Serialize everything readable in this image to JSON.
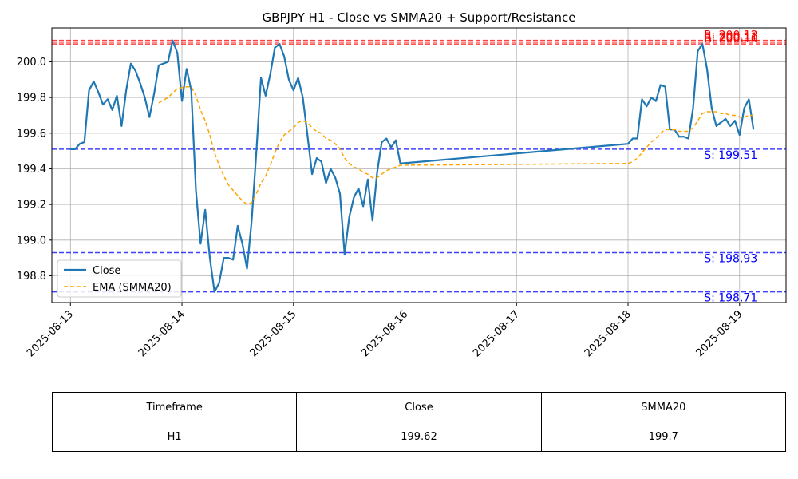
{
  "chart_data": {
    "type": "line",
    "title": "GBPJPY H1 - Close vs SMMA20 + Support/Resistance",
    "xlabel": "",
    "ylabel": "",
    "ylim": [
      198.65,
      200.19
    ],
    "xlim": [
      "2025-08-12T20:00",
      "2025-08-19T10:00"
    ],
    "x_ticks": [
      "2025-08-13",
      "2025-08-14",
      "2025-08-15",
      "2025-08-16",
      "2025-08-17",
      "2025-08-18",
      "2025-08-19"
    ],
    "y_ticks": [
      "198.8",
      "199.0",
      "199.2",
      "199.4",
      "199.6",
      "199.8",
      "200.0"
    ],
    "grid": true,
    "legend_position": "lower-left",
    "series": [
      {
        "name": "Close",
        "color": "#1f77b4",
        "style": "solid",
        "points": [
          [
            "2025-08-13T00:00",
            199.51
          ],
          [
            "2025-08-13T01:00",
            199.51
          ],
          [
            "2025-08-13T02:00",
            199.54
          ],
          [
            "2025-08-13T03:00",
            199.55
          ],
          [
            "2025-08-13T04:00",
            199.84
          ],
          [
            "2025-08-13T05:00",
            199.89
          ],
          [
            "2025-08-13T06:00",
            199.83
          ],
          [
            "2025-08-13T07:00",
            199.76
          ],
          [
            "2025-08-13T08:00",
            199.79
          ],
          [
            "2025-08-13T09:00",
            199.73
          ],
          [
            "2025-08-13T10:00",
            199.81
          ],
          [
            "2025-08-13T11:00",
            199.64
          ],
          [
            "2025-08-13T12:00",
            199.84
          ],
          [
            "2025-08-13T13:00",
            199.99
          ],
          [
            "2025-08-13T14:00",
            199.95
          ],
          [
            "2025-08-13T15:00",
            199.88
          ],
          [
            "2025-08-13T16:00",
            199.8
          ],
          [
            "2025-08-13T17:00",
            199.69
          ],
          [
            "2025-08-13T18:00",
            199.82
          ],
          [
            "2025-08-13T19:00",
            199.98
          ],
          [
            "2025-08-13T21:00",
            200.0
          ],
          [
            "2025-08-13T22:00",
            200.12
          ],
          [
            "2025-08-13T23:00",
            200.05
          ],
          [
            "2025-08-14T00:00",
            199.78
          ],
          [
            "2025-08-14T01:00",
            199.96
          ],
          [
            "2025-08-14T02:00",
            199.84
          ],
          [
            "2025-08-14T03:00",
            199.28
          ],
          [
            "2025-08-14T04:00",
            198.98
          ],
          [
            "2025-08-14T05:00",
            199.17
          ],
          [
            "2025-08-14T06:00",
            198.9
          ],
          [
            "2025-08-14T07:00",
            198.71
          ],
          [
            "2025-08-14T08:00",
            198.76
          ],
          [
            "2025-08-14T09:00",
            198.9
          ],
          [
            "2025-08-14T10:00",
            198.9
          ],
          [
            "2025-08-14T11:00",
            198.89
          ],
          [
            "2025-08-14T12:00",
            199.08
          ],
          [
            "2025-08-14T13:00",
            198.98
          ],
          [
            "2025-08-14T14:00",
            198.84
          ],
          [
            "2025-08-14T15:00",
            199.11
          ],
          [
            "2025-08-14T16:00",
            199.49
          ],
          [
            "2025-08-14T17:00",
            199.91
          ],
          [
            "2025-08-14T18:00",
            199.81
          ],
          [
            "2025-08-14T19:00",
            199.93
          ],
          [
            "2025-08-14T20:00",
            200.08
          ],
          [
            "2025-08-14T21:00",
            200.1
          ],
          [
            "2025-08-14T22:00",
            200.03
          ],
          [
            "2025-08-14T23:00",
            199.9
          ],
          [
            "2025-08-15T00:00",
            199.84
          ],
          [
            "2025-08-15T01:00",
            199.91
          ],
          [
            "2025-08-15T02:00",
            199.8
          ],
          [
            "2025-08-15T03:00",
            199.59
          ],
          [
            "2025-08-15T04:00",
            199.37
          ],
          [
            "2025-08-15T05:00",
            199.46
          ],
          [
            "2025-08-15T06:00",
            199.44
          ],
          [
            "2025-08-15T07:00",
            199.32
          ],
          [
            "2025-08-15T08:00",
            199.4
          ],
          [
            "2025-08-15T09:00",
            199.35
          ],
          [
            "2025-08-15T10:00",
            199.26
          ],
          [
            "2025-08-15T11:00",
            198.92
          ],
          [
            "2025-08-15T12:00",
            199.13
          ],
          [
            "2025-08-15T13:00",
            199.24
          ],
          [
            "2025-08-15T14:00",
            199.29
          ],
          [
            "2025-08-15T15:00",
            199.19
          ],
          [
            "2025-08-15T16:00",
            199.34
          ],
          [
            "2025-08-15T17:00",
            199.11
          ],
          [
            "2025-08-15T18:00",
            199.38
          ],
          [
            "2025-08-15T19:00",
            199.55
          ],
          [
            "2025-08-15T20:00",
            199.57
          ],
          [
            "2025-08-15T21:00",
            199.52
          ],
          [
            "2025-08-15T22:00",
            199.56
          ],
          [
            "2025-08-15T23:00",
            199.43
          ],
          [
            "2025-08-18T00:00",
            199.54
          ],
          [
            "2025-08-18T01:00",
            199.57
          ],
          [
            "2025-08-18T02:00",
            199.57
          ],
          [
            "2025-08-18T03:00",
            199.79
          ],
          [
            "2025-08-18T04:00",
            199.75
          ],
          [
            "2025-08-18T05:00",
            199.8
          ],
          [
            "2025-08-18T06:00",
            199.78
          ],
          [
            "2025-08-18T07:00",
            199.87
          ],
          [
            "2025-08-18T08:00",
            199.86
          ],
          [
            "2025-08-18T09:00",
            199.62
          ],
          [
            "2025-08-18T10:00",
            199.62
          ],
          [
            "2025-08-18T11:00",
            199.58
          ],
          [
            "2025-08-18T12:00",
            199.58
          ],
          [
            "2025-08-18T13:00",
            199.57
          ],
          [
            "2025-08-18T14:00",
            199.74
          ],
          [
            "2025-08-18T15:00",
            200.06
          ],
          [
            "2025-08-18T16:00",
            200.1
          ],
          [
            "2025-08-18T17:00",
            199.96
          ],
          [
            "2025-08-18T18:00",
            199.74
          ],
          [
            "2025-08-18T19:00",
            199.64
          ],
          [
            "2025-08-18T20:00",
            199.66
          ],
          [
            "2025-08-18T21:00",
            199.68
          ],
          [
            "2025-08-18T22:00",
            199.64
          ],
          [
            "2025-08-18T23:00",
            199.67
          ],
          [
            "2025-08-19T00:00",
            199.59
          ],
          [
            "2025-08-19T01:00",
            199.74
          ],
          [
            "2025-08-19T02:00",
            199.79
          ],
          [
            "2025-08-19T03:00",
            199.62
          ]
        ]
      },
      {
        "name": "EMA (SMMA20)",
        "color": "#ffa500",
        "style": "dashed",
        "points": [
          [
            "2025-08-13T19:00",
            199.77
          ],
          [
            "2025-08-13T21:00",
            199.8
          ],
          [
            "2025-08-13T23:00",
            199.85
          ],
          [
            "2025-08-14T01:00",
            199.86
          ],
          [
            "2025-08-14T02:00",
            199.86
          ],
          [
            "2025-08-14T03:00",
            199.81
          ],
          [
            "2025-08-14T04:00",
            199.73
          ],
          [
            "2025-08-14T05:00",
            199.67
          ],
          [
            "2025-08-14T06:00",
            199.59
          ],
          [
            "2025-08-14T07:00",
            199.49
          ],
          [
            "2025-08-14T08:00",
            199.42
          ],
          [
            "2025-08-14T09:00",
            199.36
          ],
          [
            "2025-08-14T10:00",
            199.31
          ],
          [
            "2025-08-14T11:00",
            199.28
          ],
          [
            "2025-08-14T12:00",
            199.25
          ],
          [
            "2025-08-14T13:00",
            199.22
          ],
          [
            "2025-08-14T14:00",
            199.2
          ],
          [
            "2025-08-14T15:00",
            199.21
          ],
          [
            "2025-08-14T16:00",
            199.26
          ],
          [
            "2025-08-14T17:00",
            199.32
          ],
          [
            "2025-08-14T18:00",
            199.36
          ],
          [
            "2025-08-14T19:00",
            199.42
          ],
          [
            "2025-08-14T20:00",
            199.49
          ],
          [
            "2025-08-14T21:00",
            199.55
          ],
          [
            "2025-08-14T22:00",
            199.59
          ],
          [
            "2025-08-14T23:00",
            199.61
          ],
          [
            "2025-08-15T00:00",
            199.63
          ],
          [
            "2025-08-15T01:00",
            199.66
          ],
          [
            "2025-08-15T02:00",
            199.67
          ],
          [
            "2025-08-15T03:00",
            199.66
          ],
          [
            "2025-08-15T04:00",
            199.63
          ],
          [
            "2025-08-15T05:00",
            199.61
          ],
          [
            "2025-08-15T06:00",
            199.6
          ],
          [
            "2025-08-15T07:00",
            199.57
          ],
          [
            "2025-08-15T08:00",
            199.56
          ],
          [
            "2025-08-15T09:00",
            199.54
          ],
          [
            "2025-08-15T10:00",
            199.51
          ],
          [
            "2025-08-15T11:00",
            199.46
          ],
          [
            "2025-08-15T12:00",
            199.43
          ],
          [
            "2025-08-15T13:00",
            199.41
          ],
          [
            "2025-08-15T14:00",
            199.4
          ],
          [
            "2025-08-15T15:00",
            199.38
          ],
          [
            "2025-08-15T16:00",
            199.37
          ],
          [
            "2025-08-15T17:00",
            199.35
          ],
          [
            "2025-08-15T18:00",
            199.35
          ],
          [
            "2025-08-15T19:00",
            199.37
          ],
          [
            "2025-08-15T20:00",
            199.39
          ],
          [
            "2025-08-15T21:00",
            199.4
          ],
          [
            "2025-08-15T22:00",
            199.41
          ],
          [
            "2025-08-15T23:00",
            199.42
          ],
          [
            "2025-08-18T00:00",
            199.43
          ],
          [
            "2025-08-18T01:00",
            199.44
          ],
          [
            "2025-08-18T02:00",
            199.46
          ],
          [
            "2025-08-18T03:00",
            199.49
          ],
          [
            "2025-08-18T04:00",
            199.52
          ],
          [
            "2025-08-18T05:00",
            199.55
          ],
          [
            "2025-08-18T06:00",
            199.57
          ],
          [
            "2025-08-18T07:00",
            199.6
          ],
          [
            "2025-08-18T08:00",
            199.62
          ],
          [
            "2025-08-18T09:00",
            199.62
          ],
          [
            "2025-08-18T10:00",
            199.62
          ],
          [
            "2025-08-18T11:00",
            199.61
          ],
          [
            "2025-08-18T12:00",
            199.61
          ],
          [
            "2025-08-18T13:00",
            199.61
          ],
          [
            "2025-08-18T14:00",
            199.63
          ],
          [
            "2025-08-18T15:00",
            199.67
          ],
          [
            "2025-08-18T16:00",
            199.71
          ],
          [
            "2025-08-18T17:00",
            199.72
          ],
          [
            "2025-08-18T18:00",
            199.72
          ],
          [
            "2025-08-18T19:00",
            199.72
          ],
          [
            "2025-08-18T20:00",
            199.71
          ],
          [
            "2025-08-18T21:00",
            199.71
          ],
          [
            "2025-08-18T22:00",
            199.7
          ],
          [
            "2025-08-18T23:00",
            199.7
          ],
          [
            "2025-08-19T00:00",
            199.69
          ],
          [
            "2025-08-19T01:00",
            199.69
          ],
          [
            "2025-08-19T02:00",
            199.7
          ],
          [
            "2025-08-19T03:00",
            199.7
          ]
        ]
      }
    ],
    "resistance_levels": [
      {
        "value": 200.12,
        "label": "R: 200.12",
        "color": "#ff0000"
      },
      {
        "value": 200.1,
        "label": "R: 200.10",
        "color": "#ff0000"
      },
      {
        "value": 200.11,
        "label": "R: 200.11",
        "color": "#ff0000"
      }
    ],
    "support_levels": [
      {
        "value": 199.51,
        "label": "S: 199.51",
        "color": "#0000ff"
      },
      {
        "value": 198.93,
        "label": "S: 198.93",
        "color": "#0000ff"
      },
      {
        "value": 198.71,
        "label": "S: 198.71",
        "color": "#0000ff"
      }
    ]
  },
  "table": {
    "headers": [
      "Timeframe",
      "Close",
      "SMMA20"
    ],
    "rows": [
      [
        "H1",
        "199.62",
        "199.7"
      ]
    ]
  }
}
